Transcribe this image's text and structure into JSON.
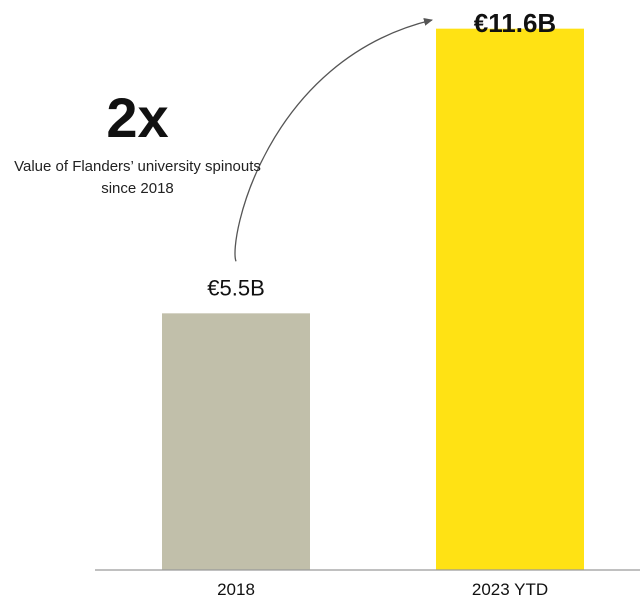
{
  "headline": {
    "value": "2x",
    "caption": "Value of Flanders’ university spinouts since 2018"
  },
  "chart_data": {
    "type": "bar",
    "title": "",
    "xlabel": "",
    "ylabel": "",
    "categories": [
      "2018",
      "2023 YTD"
    ],
    "values": [
      5.5,
      11.6
    ],
    "value_labels": [
      "€5.5B",
      "€11.6B"
    ],
    "unit": "€B",
    "ylim": [
      0,
      12
    ],
    "grid": false,
    "legend": "none",
    "colors": [
      "#c1bfaa",
      "#ffe214"
    ],
    "axis_color": "#9a9a9a",
    "arrow_color": "#555555",
    "annotation": "growth-arrow"
  }
}
